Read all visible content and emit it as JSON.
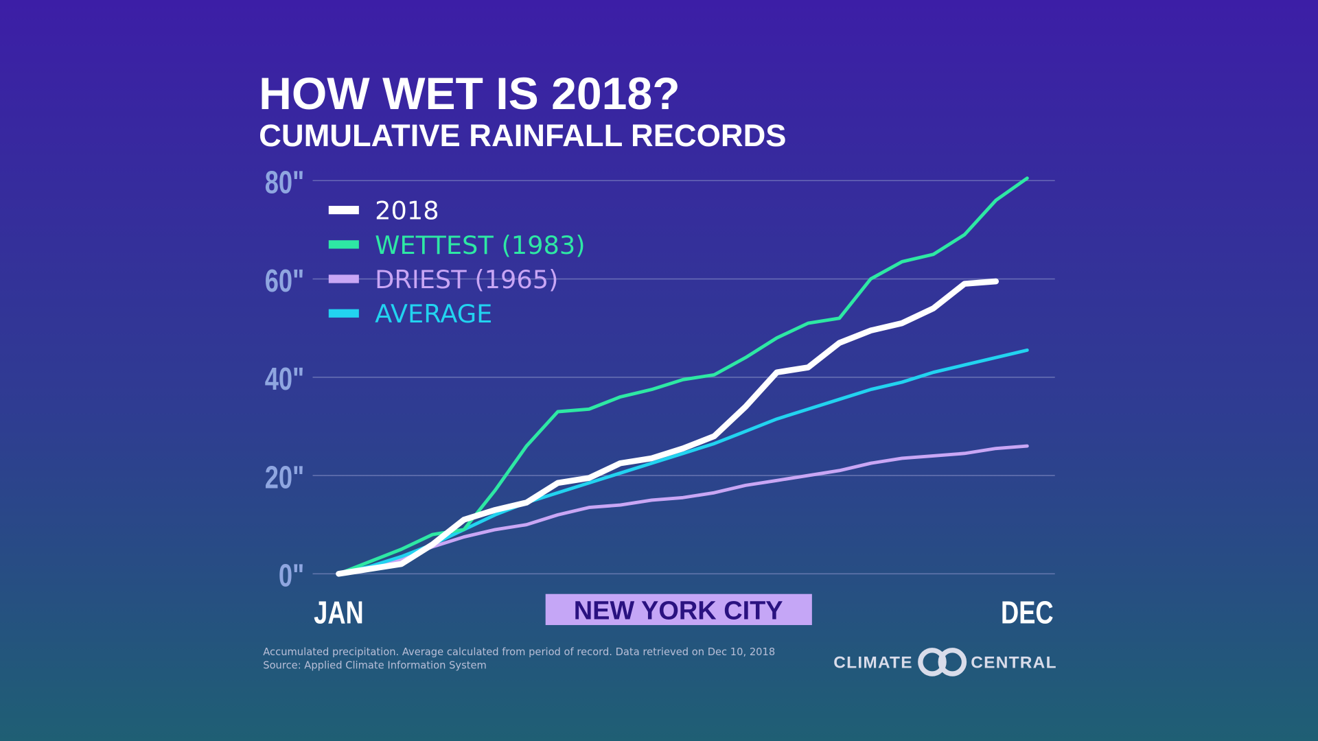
{
  "chart_data": {
    "type": "line",
    "title": "HOW WET IS 2018?",
    "subtitle": "CUMULATIVE RAINFALL RECORDS",
    "location": "NEW YORK CITY",
    "x": [
      0,
      0.5,
      1,
      1.5,
      2,
      2.5,
      3,
      3.5,
      4,
      4.5,
      5,
      5.5,
      6,
      6.5,
      7,
      7.5,
      8,
      8.5,
      9,
      9.5,
      10,
      10.5,
      11
    ],
    "xlim": [
      0,
      11
    ],
    "xticks": [
      {
        "value": 0,
        "label": "JAN"
      },
      {
        "value": 11,
        "label": "DEC"
      }
    ],
    "ylim": [
      0,
      80
    ],
    "yticks": [
      {
        "value": 0,
        "label": "0\""
      },
      {
        "value": 20,
        "label": "20\""
      },
      {
        "value": 40,
        "label": "40\""
      },
      {
        "value": 60,
        "label": "60\""
      },
      {
        "value": 80,
        "label": "80\""
      }
    ],
    "grid": true,
    "series": [
      {
        "name": "2018",
        "color": "#ffffff",
        "values": [
          0,
          1,
          2,
          6,
          11,
          13,
          14.5,
          18.5,
          19.5,
          22.5,
          23.5,
          25.5,
          28,
          34,
          41,
          42,
          47,
          49.5,
          51,
          54,
          59,
          59.5,
          null
        ]
      },
      {
        "name": "WETTEST (1983)",
        "color": "#2ee8a4",
        "values": [
          0,
          2.5,
          5,
          8,
          9,
          17,
          26,
          33,
          33.5,
          36,
          37.5,
          39.5,
          40.5,
          44,
          48,
          51,
          52,
          60,
          63.5,
          65,
          69,
          76,
          80.5
        ]
      },
      {
        "name": "DRIEST (1965)",
        "color": "#c9a6f5",
        "values": [
          0,
          1,
          3,
          5.5,
          7.5,
          9,
          10,
          12,
          13.5,
          14,
          15,
          15.5,
          16.5,
          18,
          19,
          20,
          21,
          22.5,
          23.5,
          24,
          24.5,
          25.5,
          26
        ]
      },
      {
        "name": "AVERAGE",
        "color": "#22d3f0",
        "values": [
          0,
          1.5,
          3.5,
          6,
          9,
          12,
          14.5,
          16.5,
          18.5,
          20.5,
          22.5,
          24.5,
          26.5,
          29,
          31.5,
          33.5,
          35.5,
          37.5,
          39,
          41,
          42.5,
          44,
          45.5
        ]
      }
    ],
    "notes": [
      "Accumulated precipitation. Average calculated from period of record. Data retrieved on Dec 10, 2018",
      "Source: Applied Climate Information System"
    ],
    "logo": [
      "CLIMATE",
      "CENTRAL"
    ]
  }
}
